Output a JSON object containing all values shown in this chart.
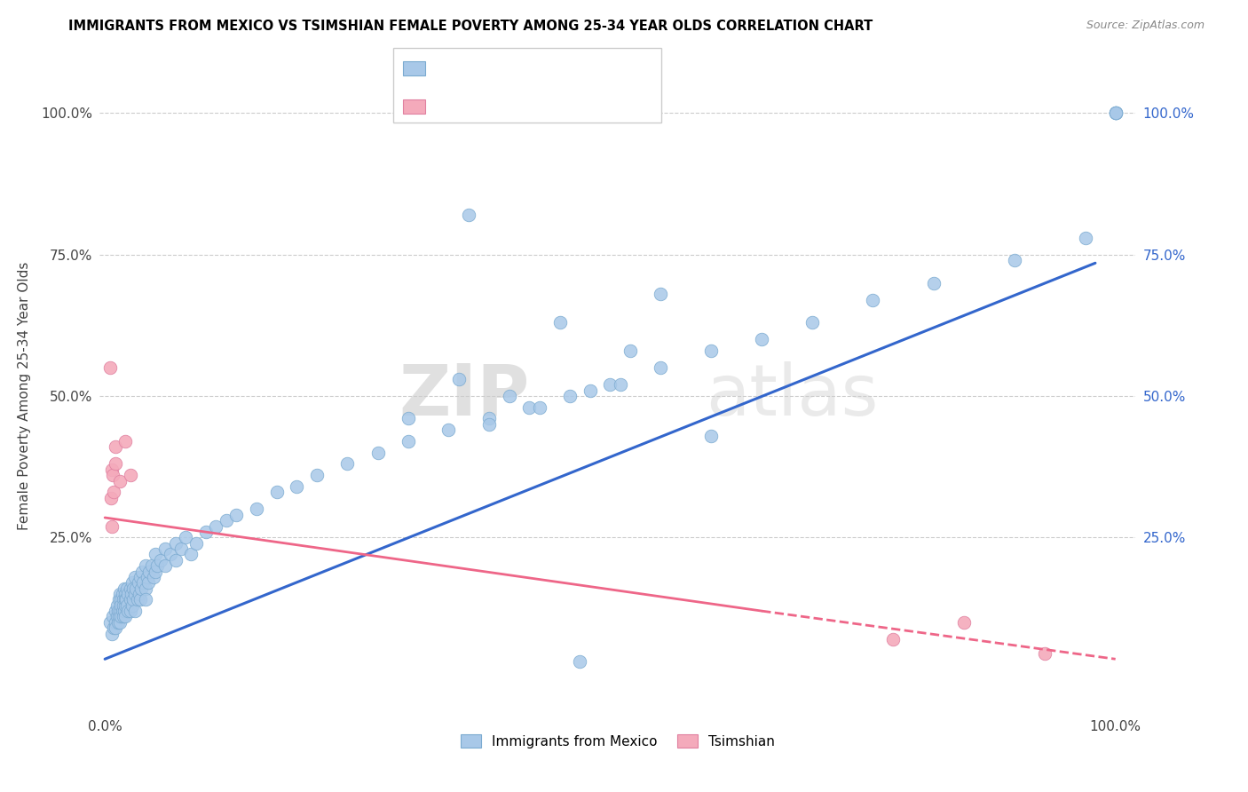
{
  "title": "IMMIGRANTS FROM MEXICO VS TSIMSHIAN FEMALE POVERTY AMONG 25-34 YEAR OLDS CORRELATION CHART",
  "source": "Source: ZipAtlas.com",
  "ylabel": "Female Poverty Among 25-34 Year Olds",
  "blue_color": "#A8C8E8",
  "blue_edge_color": "#7AAAD0",
  "pink_color": "#F4AABB",
  "pink_edge_color": "#E080A0",
  "blue_line_color": "#3366CC",
  "pink_line_color": "#EE6688",
  "grid_color": "#CCCCCC",
  "watermark_color": "#DDDDDD",
  "legend_text_dark": "#333333",
  "legend_text_blue": "#3366CC",
  "blue_line_x0": 0.0,
  "blue_line_y0": 0.035,
  "blue_line_x1": 0.98,
  "blue_line_y1": 0.735,
  "pink_line_solid_x0": 0.0,
  "pink_line_solid_y0": 0.285,
  "pink_line_solid_x1": 0.65,
  "pink_line_solid_y1": 0.12,
  "pink_line_dash_x0": 0.65,
  "pink_line_dash_y0": 0.12,
  "pink_line_dash_x1": 1.0,
  "pink_line_dash_y1": 0.035,
  "ylim_min": -0.06,
  "ylim_max": 1.06,
  "xlim_min": -0.005,
  "xlim_max": 1.02,
  "ytick_pos": [
    0.0,
    0.25,
    0.5,
    0.75,
    1.0
  ],
  "ytick_labels": [
    "",
    "25.0%",
    "50.0%",
    "75.0%",
    "100.0%"
  ],
  "xtick_pos": [
    0.0,
    1.0
  ],
  "xtick_labels": [
    "0.0%",
    "100.0%"
  ],
  "blue_x": [
    0.005,
    0.007,
    0.008,
    0.009,
    0.01,
    0.01,
    0.01,
    0.012,
    0.012,
    0.013,
    0.013,
    0.014,
    0.014,
    0.015,
    0.015,
    0.015,
    0.016,
    0.016,
    0.016,
    0.017,
    0.017,
    0.018,
    0.018,
    0.018,
    0.019,
    0.019,
    0.02,
    0.02,
    0.02,
    0.02,
    0.021,
    0.022,
    0.022,
    0.023,
    0.023,
    0.025,
    0.025,
    0.025,
    0.026,
    0.027,
    0.027,
    0.028,
    0.028,
    0.03,
    0.03,
    0.03,
    0.031,
    0.032,
    0.033,
    0.034,
    0.035,
    0.035,
    0.036,
    0.037,
    0.038,
    0.04,
    0.04,
    0.04,
    0.042,
    0.043,
    0.044,
    0.046,
    0.048,
    0.05,
    0.05,
    0.052,
    0.055,
    0.06,
    0.06,
    0.065,
    0.07,
    0.07,
    0.075,
    0.08,
    0.085,
    0.09,
    0.1,
    0.11,
    0.12,
    0.13,
    0.15,
    0.17,
    0.19,
    0.21,
    0.24,
    0.27,
    0.3,
    0.34,
    0.38,
    0.42,
    0.46,
    0.5,
    0.55,
    0.6,
    0.65,
    0.7,
    0.76,
    0.82,
    0.9,
    0.97,
    1.0,
    1.0,
    1.0,
    1.0,
    0.36,
    0.45,
    0.51,
    0.47,
    0.35,
    0.52,
    0.4,
    0.3,
    0.55,
    0.6,
    0.43,
    0.48,
    0.38
  ],
  "blue_y": [
    0.1,
    0.08,
    0.11,
    0.09,
    0.12,
    0.1,
    0.09,
    0.13,
    0.11,
    0.12,
    0.1,
    0.14,
    0.11,
    0.15,
    0.12,
    0.1,
    0.14,
    0.11,
    0.13,
    0.15,
    0.12,
    0.14,
    0.11,
    0.13,
    0.16,
    0.12,
    0.15,
    0.13,
    0.11,
    0.14,
    0.14,
    0.16,
    0.13,
    0.15,
    0.12,
    0.16,
    0.14,
    0.12,
    0.15,
    0.17,
    0.13,
    0.16,
    0.14,
    0.18,
    0.15,
    0.12,
    0.16,
    0.14,
    0.17,
    0.15,
    0.18,
    0.14,
    0.16,
    0.19,
    0.17,
    0.2,
    0.16,
    0.14,
    0.18,
    0.17,
    0.19,
    0.2,
    0.18,
    0.22,
    0.19,
    0.2,
    0.21,
    0.23,
    0.2,
    0.22,
    0.24,
    0.21,
    0.23,
    0.25,
    0.22,
    0.24,
    0.26,
    0.27,
    0.28,
    0.29,
    0.3,
    0.33,
    0.34,
    0.36,
    0.38,
    0.4,
    0.42,
    0.44,
    0.46,
    0.48,
    0.5,
    0.52,
    0.55,
    0.58,
    0.6,
    0.63,
    0.67,
    0.7,
    0.74,
    0.78,
    1.0,
    1.0,
    1.0,
    1.0,
    0.82,
    0.63,
    0.52,
    0.03,
    0.53,
    0.58,
    0.5,
    0.46,
    0.68,
    0.43,
    0.48,
    0.51,
    0.45
  ],
  "pink_x": [
    0.005,
    0.006,
    0.007,
    0.007,
    0.008,
    0.009,
    0.01,
    0.01,
    0.015,
    0.02,
    0.025,
    0.78,
    0.85,
    0.93
  ],
  "pink_y": [
    0.55,
    0.32,
    0.37,
    0.27,
    0.36,
    0.33,
    0.38,
    0.41,
    0.35,
    0.42,
    0.36,
    0.07,
    0.1,
    0.045
  ]
}
